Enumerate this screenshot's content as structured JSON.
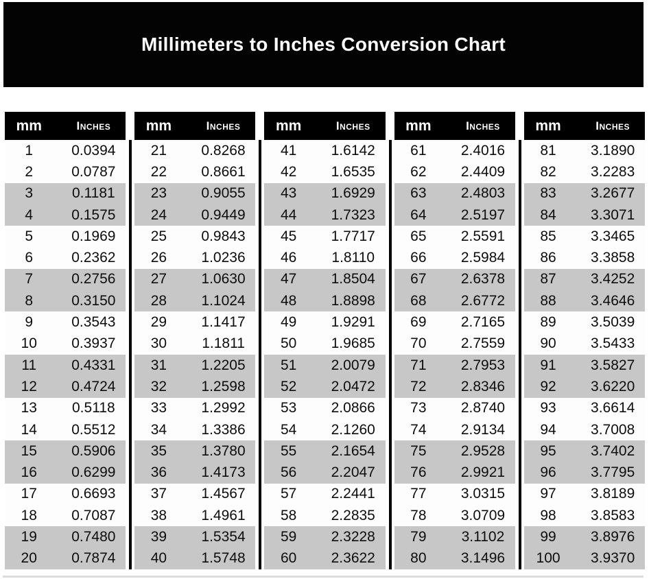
{
  "title": "Millimeters to Inches Conversion Chart",
  "columns": {
    "mm": "mm",
    "inches": "Inches"
  },
  "colors": {
    "banner_bg": "#030303",
    "header_bg": "#000000",
    "header_text": "#ffffff",
    "shaded_row": "#c7c7c7",
    "body_text": "#0d0d0d"
  },
  "tables": [
    {
      "rows": [
        [
          "1",
          "0.0394"
        ],
        [
          "2",
          "0.0787"
        ],
        [
          "3",
          "0.1181"
        ],
        [
          "4",
          "0.1575"
        ],
        [
          "5",
          "0.1969"
        ],
        [
          "6",
          "0.2362"
        ],
        [
          "7",
          "0.2756"
        ],
        [
          "8",
          "0.3150"
        ],
        [
          "9",
          "0.3543"
        ],
        [
          "10",
          "0.3937"
        ],
        [
          "11",
          "0.4331"
        ],
        [
          "12",
          "0.4724"
        ],
        [
          "13",
          "0.5118"
        ],
        [
          "14",
          "0.5512"
        ],
        [
          "15",
          "0.5906"
        ],
        [
          "16",
          "0.6299"
        ],
        [
          "17",
          "0.6693"
        ],
        [
          "18",
          "0.7087"
        ],
        [
          "19",
          "0.7480"
        ],
        [
          "20",
          "0.7874"
        ]
      ]
    },
    {
      "rows": [
        [
          "21",
          "0.8268"
        ],
        [
          "22",
          "0.8661"
        ],
        [
          "23",
          "0.9055"
        ],
        [
          "24",
          "0.9449"
        ],
        [
          "25",
          "0.9843"
        ],
        [
          "26",
          "1.0236"
        ],
        [
          "27",
          "1.0630"
        ],
        [
          "28",
          "1.1024"
        ],
        [
          "29",
          "1.1417"
        ],
        [
          "30",
          "1.1811"
        ],
        [
          "31",
          "1.2205"
        ],
        [
          "32",
          "1.2598"
        ],
        [
          "33",
          "1.2992"
        ],
        [
          "34",
          "1.3386"
        ],
        [
          "35",
          "1.3780"
        ],
        [
          "36",
          "1.4173"
        ],
        [
          "37",
          "1.4567"
        ],
        [
          "38",
          "1.4961"
        ],
        [
          "39",
          "1.5354"
        ],
        [
          "40",
          "1.5748"
        ]
      ]
    },
    {
      "rows": [
        [
          "41",
          "1.6142"
        ],
        [
          "42",
          "1.6535"
        ],
        [
          "43",
          "1.6929"
        ],
        [
          "44",
          "1.7323"
        ],
        [
          "45",
          "1.7717"
        ],
        [
          "46",
          "1.8110"
        ],
        [
          "47",
          "1.8504"
        ],
        [
          "48",
          "1.8898"
        ],
        [
          "49",
          "1.9291"
        ],
        [
          "50",
          "1.9685"
        ],
        [
          "51",
          "2.0079"
        ],
        [
          "52",
          "2.0472"
        ],
        [
          "53",
          "2.0866"
        ],
        [
          "54",
          "2.1260"
        ],
        [
          "55",
          "2.1654"
        ],
        [
          "56",
          "2.2047"
        ],
        [
          "57",
          "2.2441"
        ],
        [
          "58",
          "2.2835"
        ],
        [
          "59",
          "2.3228"
        ],
        [
          "60",
          "2.3622"
        ]
      ]
    },
    {
      "rows": [
        [
          "61",
          "2.4016"
        ],
        [
          "62",
          "2.4409"
        ],
        [
          "63",
          "2.4803"
        ],
        [
          "64",
          "2.5197"
        ],
        [
          "65",
          "2.5591"
        ],
        [
          "66",
          "2.5984"
        ],
        [
          "67",
          "2.6378"
        ],
        [
          "68",
          "2.6772"
        ],
        [
          "69",
          "2.7165"
        ],
        [
          "70",
          "2.7559"
        ],
        [
          "71",
          "2.7953"
        ],
        [
          "72",
          "2.8346"
        ],
        [
          "73",
          "2.8740"
        ],
        [
          "74",
          "2.9134"
        ],
        [
          "75",
          "2.9528"
        ],
        [
          "76",
          "2.9921"
        ],
        [
          "77",
          "3.0315"
        ],
        [
          "78",
          "3.0709"
        ],
        [
          "79",
          "3.1102"
        ],
        [
          "80",
          "3.1496"
        ]
      ]
    },
    {
      "rows": [
        [
          "81",
          "3.1890"
        ],
        [
          "82",
          "3.2283"
        ],
        [
          "83",
          "3.2677"
        ],
        [
          "84",
          "3.3071"
        ],
        [
          "85",
          "3.3465"
        ],
        [
          "86",
          "3.3858"
        ],
        [
          "87",
          "3.4252"
        ],
        [
          "88",
          "3.4646"
        ],
        [
          "89",
          "3.5039"
        ],
        [
          "90",
          "3.5433"
        ],
        [
          "91",
          "3.5827"
        ],
        [
          "92",
          "3.6220"
        ],
        [
          "93",
          "3.6614"
        ],
        [
          "94",
          "3.7008"
        ],
        [
          "95",
          "3.7402"
        ],
        [
          "96",
          "3.7795"
        ],
        [
          "97",
          "3.8189"
        ],
        [
          "98",
          "3.8583"
        ],
        [
          "99",
          "3.8976"
        ],
        [
          "100",
          "3.9370"
        ]
      ]
    }
  ]
}
